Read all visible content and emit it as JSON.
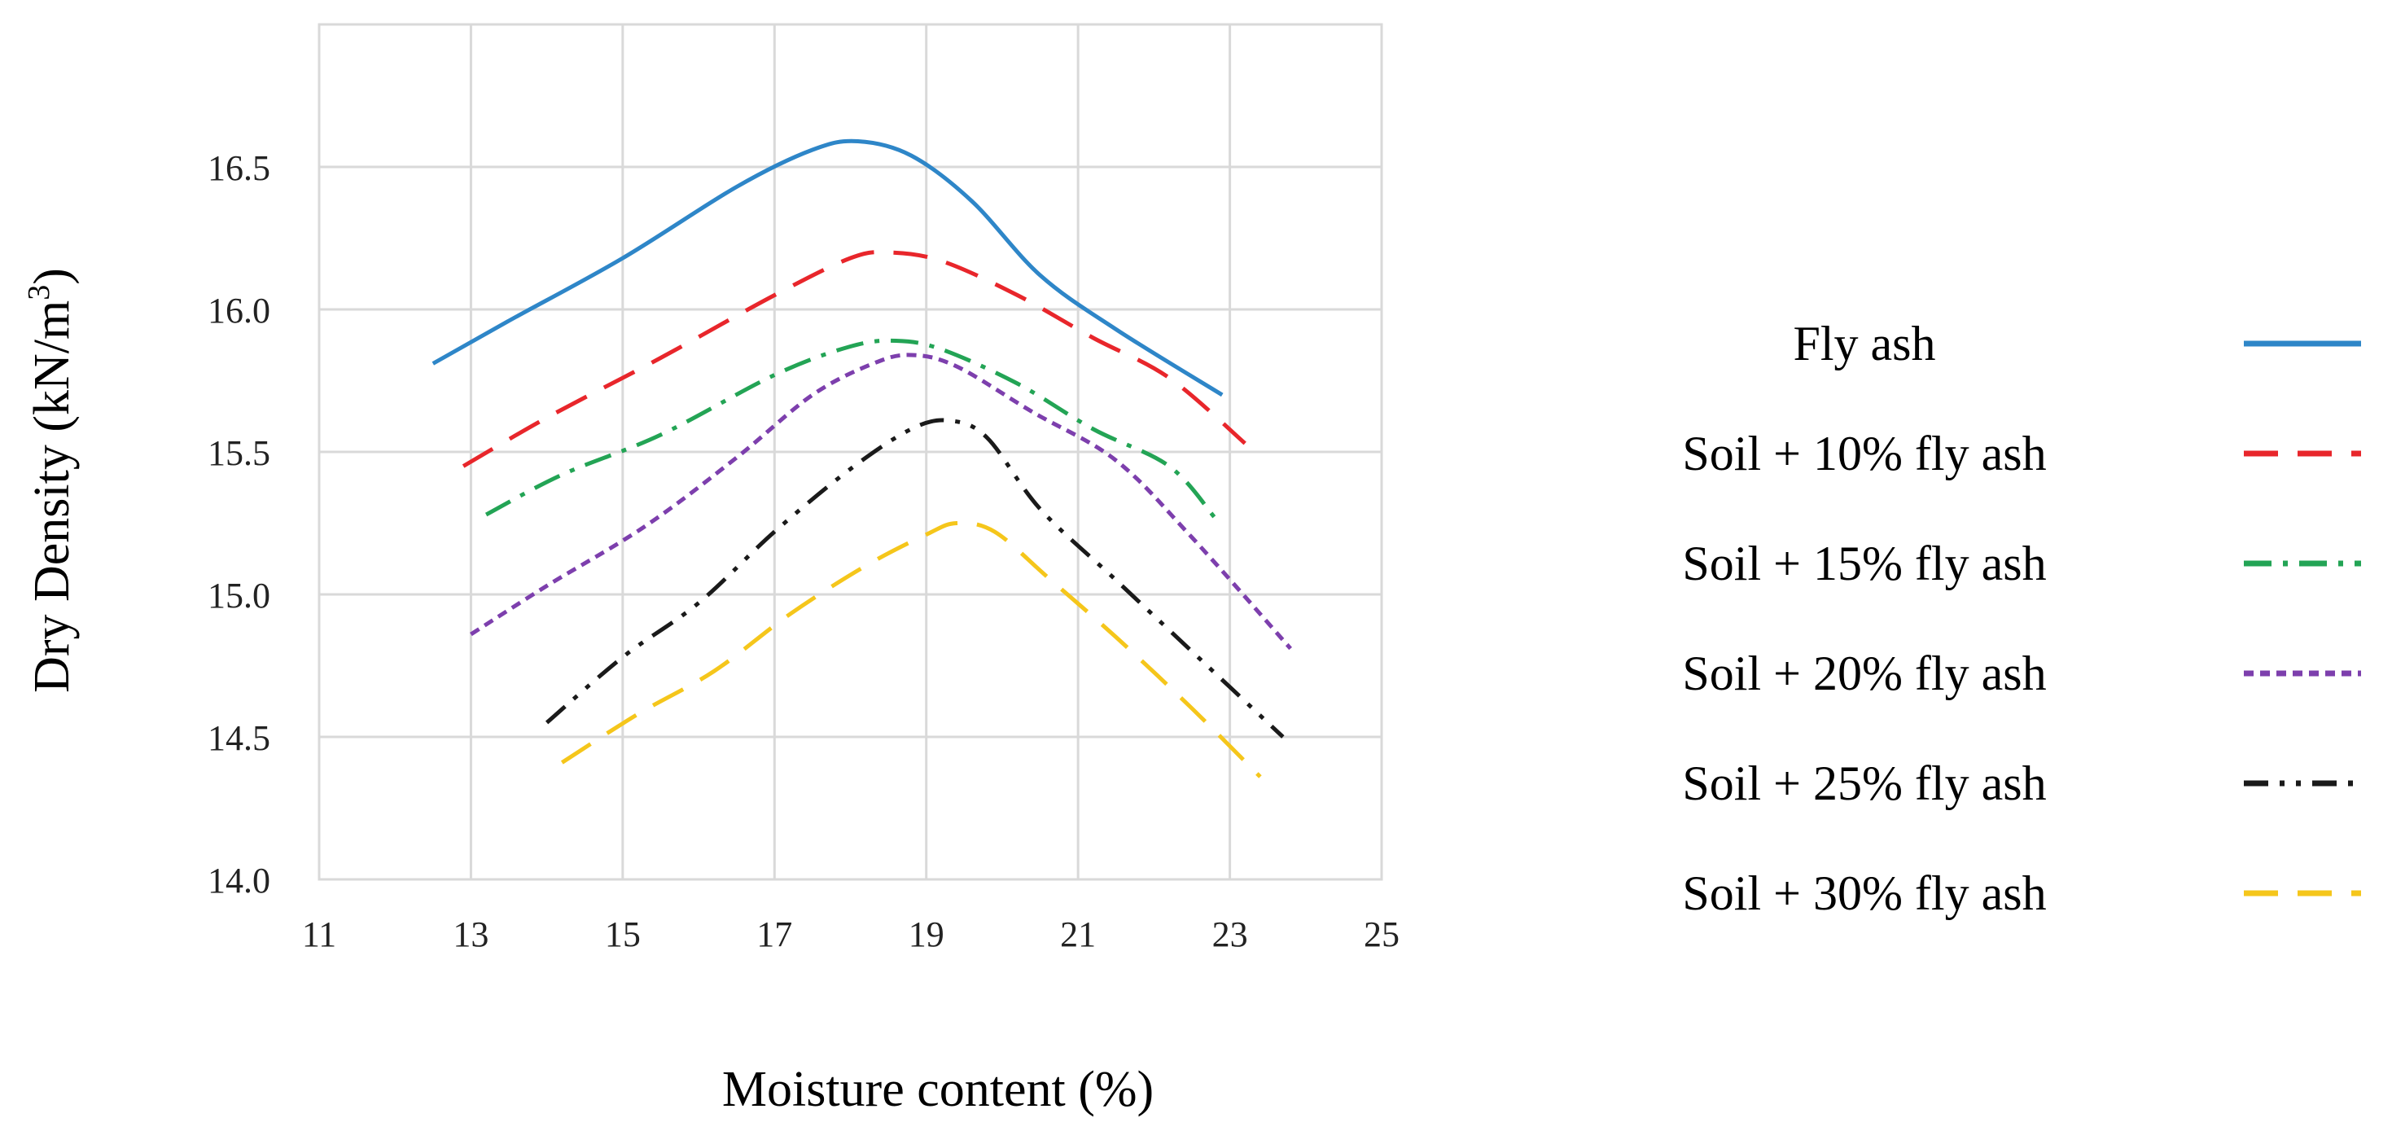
{
  "chart_data": {
    "type": "line",
    "title": "",
    "xlabel": "Moisture content (%)",
    "ylabel_main": "Dry Density (kN/m",
    "ylabel_sup": "3",
    "ylabel_end": ")",
    "xlim": [
      11,
      25
    ],
    "ylim": [
      14.0,
      17.0
    ],
    "x_ticks": [
      11,
      13,
      15,
      17,
      19,
      21,
      23,
      25
    ],
    "y_ticks": [
      "14.0",
      "14.5",
      "15.0",
      "15.5",
      "16.0",
      "16.5"
    ],
    "y_tick_values": [
      14.0,
      14.5,
      15.0,
      15.5,
      16.0,
      16.5
    ],
    "grid": true,
    "legend_position": "right",
    "series": [
      {
        "name": "Fly ash",
        "color": "#2E86C8",
        "dash": "solid",
        "points": [
          [
            12.5,
            15.81
          ],
          [
            13.5,
            15.96
          ],
          [
            15.0,
            16.18
          ],
          [
            16.5,
            16.43
          ],
          [
            17.5,
            16.56
          ],
          [
            18.1,
            16.59
          ],
          [
            18.8,
            16.54
          ],
          [
            19.6,
            16.38
          ],
          [
            20.5,
            16.12
          ],
          [
            21.5,
            15.93
          ],
          [
            22.9,
            15.7
          ]
        ]
      },
      {
        "name": "Soil + 10% fly ash",
        "color": "#E8262B",
        "dash": "dashed",
        "points": [
          [
            12.9,
            15.45
          ],
          [
            14.0,
            15.62
          ],
          [
            15.5,
            15.83
          ],
          [
            17.0,
            16.05
          ],
          [
            18.0,
            16.18
          ],
          [
            18.5,
            16.2
          ],
          [
            19.2,
            16.17
          ],
          [
            20.2,
            16.05
          ],
          [
            21.2,
            15.9
          ],
          [
            22.2,
            15.76
          ],
          [
            23.2,
            15.53
          ]
        ]
      },
      {
        "name": "Soil + 15% fly ash",
        "color": "#23A455",
        "dash": "dashdot",
        "points": [
          [
            13.2,
            15.28
          ],
          [
            14.2,
            15.42
          ],
          [
            15.5,
            15.56
          ],
          [
            17.0,
            15.77
          ],
          [
            18.0,
            15.87
          ],
          [
            18.6,
            15.89
          ],
          [
            19.2,
            15.86
          ],
          [
            20.2,
            15.74
          ],
          [
            21.2,
            15.58
          ],
          [
            22.2,
            15.45
          ],
          [
            22.8,
            15.27
          ]
        ]
      },
      {
        "name": "Soil + 20% fly ash",
        "color": "#7D3FAD",
        "dash": "dotted",
        "points": [
          [
            13.0,
            14.86
          ],
          [
            14.0,
            15.03
          ],
          [
            15.3,
            15.24
          ],
          [
            16.5,
            15.48
          ],
          [
            17.5,
            15.7
          ],
          [
            18.3,
            15.81
          ],
          [
            18.8,
            15.84
          ],
          [
            19.4,
            15.8
          ],
          [
            20.4,
            15.64
          ],
          [
            21.5,
            15.47
          ],
          [
            22.5,
            15.2
          ],
          [
            23.8,
            14.81
          ]
        ]
      },
      {
        "name": "Soil + 25% fly ash",
        "color": "#1A1A1A",
        "dash": "dashdotdot",
        "points": [
          [
            14.0,
            14.55
          ],
          [
            15.0,
            14.78
          ],
          [
            16.0,
            14.97
          ],
          [
            17.0,
            15.22
          ],
          [
            18.0,
            15.44
          ],
          [
            18.8,
            15.58
          ],
          [
            19.3,
            15.61
          ],
          [
            19.8,
            15.55
          ],
          [
            20.5,
            15.3
          ],
          [
            21.5,
            15.05
          ],
          [
            22.5,
            14.8
          ],
          [
            23.7,
            14.5
          ]
        ]
      },
      {
        "name": "Soil + 30% fly ash",
        "color": "#F5C61B",
        "dash": "dashed",
        "points": [
          [
            14.2,
            14.41
          ],
          [
            15.2,
            14.58
          ],
          [
            16.2,
            14.73
          ],
          [
            17.2,
            14.93
          ],
          [
            18.2,
            15.1
          ],
          [
            19.0,
            15.21
          ],
          [
            19.4,
            15.25
          ],
          [
            19.9,
            15.22
          ],
          [
            20.6,
            15.06
          ],
          [
            21.5,
            14.85
          ],
          [
            22.5,
            14.6
          ],
          [
            23.4,
            14.36
          ]
        ]
      }
    ]
  }
}
